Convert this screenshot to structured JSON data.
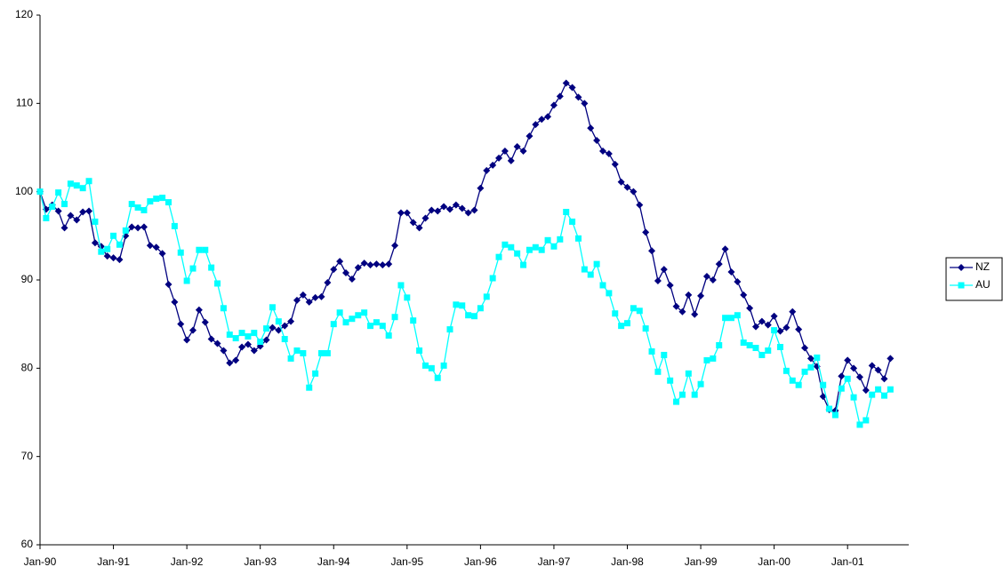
{
  "chart_data": {
    "type": "line",
    "categories": [
      "Jan-90",
      null,
      null,
      null,
      null,
      null,
      null,
      null,
      null,
      null,
      null,
      null,
      "Jan-91",
      null,
      null,
      null,
      null,
      null,
      null,
      null,
      null,
      null,
      null,
      null,
      "Jan-92",
      null,
      null,
      null,
      null,
      null,
      null,
      null,
      null,
      null,
      null,
      null,
      "Jan-93",
      null,
      null,
      null,
      null,
      null,
      null,
      null,
      null,
      null,
      null,
      null,
      "Jan-94",
      null,
      null,
      null,
      null,
      null,
      null,
      null,
      null,
      null,
      null,
      null,
      "Jan-95",
      null,
      null,
      null,
      null,
      null,
      null,
      null,
      null,
      null,
      null,
      null,
      "Jan-96",
      null,
      null,
      null,
      null,
      null,
      null,
      null,
      null,
      null,
      null,
      null,
      "Jan-97",
      null,
      null,
      null,
      null,
      null,
      null,
      null,
      null,
      null,
      null,
      null,
      "Jan-98",
      null,
      null,
      null,
      null,
      null,
      null,
      null,
      null,
      null,
      null,
      null,
      "Jan-99",
      null,
      null,
      null,
      null,
      null,
      null,
      null,
      null,
      null,
      null,
      null,
      "Jan-00",
      null,
      null,
      null,
      null,
      null,
      null,
      null,
      null,
      null,
      null,
      null,
      "Jan-01",
      null,
      null,
      null,
      null,
      null,
      null,
      null
    ],
    "series": [
      {
        "name": "NZ",
        "color": "#000080",
        "marker": "diamond",
        "values": [
          100,
          98,
          98.5,
          97.8,
          95.9,
          97.3,
          96.8,
          97.7,
          97.8,
          94.2,
          93.8,
          92.7,
          92.5,
          92.3,
          95,
          96,
          95.9,
          96,
          93.9,
          93.7,
          93,
          89.5,
          87.5,
          85,
          83.2,
          84.3,
          86.6,
          85.2,
          83.3,
          82.8,
          82,
          80.6,
          80.9,
          82.4,
          82.7,
          82,
          82.5,
          83.2,
          84.6,
          84.3,
          84.8,
          85.3,
          87.7,
          88.3,
          87.5,
          88,
          88.1,
          89.7,
          91.2,
          92.1,
          90.8,
          90.1,
          91.4,
          91.9,
          91.7,
          91.8,
          91.7,
          91.8,
          93.9,
          97.6,
          97.6,
          96.5,
          95.9,
          97,
          97.9,
          97.8,
          98.3,
          98,
          98.5,
          98.1,
          97.6,
          97.9,
          100.4,
          102.4,
          103,
          103.8,
          104.6,
          103.5,
          105.1,
          104.6,
          106.3,
          107.6,
          108.2,
          108.5,
          109.8,
          110.8,
          112.3,
          111.8,
          110.7,
          110,
          107.2,
          105.8,
          104.6,
          104.3,
          103.1,
          101.1,
          100.5,
          100,
          98.5,
          95.4,
          93.3,
          89.9,
          91.2,
          89.4,
          87,
          86.4,
          88.3,
          86.1,
          88.2,
          90.4,
          90,
          91.8,
          93.5,
          90.9,
          89.8,
          88.3,
          86.8,
          84.7,
          85.3,
          84.9,
          85.9,
          84.2,
          84.6,
          86.4,
          84.4,
          82.3,
          81.1,
          80.2,
          76.8,
          75.3,
          75.2,
          79.1,
          80.9,
          80,
          79,
          77.5,
          80.3,
          79.8,
          78.8,
          81.1
        ]
      },
      {
        "name": "AU",
        "color": "#00ffff",
        "marker": "square",
        "values": [
          100,
          97,
          98.3,
          99.9,
          98.6,
          100.9,
          100.7,
          100.4,
          101.2,
          96.6,
          93.2,
          93.5,
          95,
          94,
          95.6,
          98.6,
          98.2,
          97.9,
          98.9,
          99.2,
          99.3,
          98.8,
          96.1,
          93.1,
          89.9,
          91.3,
          93.4,
          93.4,
          91.4,
          89.6,
          86.8,
          83.8,
          83.4,
          84,
          83.6,
          84,
          83,
          84.5,
          86.9,
          85.3,
          83.3,
          81.1,
          82,
          81.7,
          77.8,
          79.4,
          81.7,
          81.7,
          85,
          86.3,
          85.2,
          85.6,
          86,
          86.3,
          84.8,
          85.2,
          84.8,
          83.7,
          85.8,
          89.4,
          88,
          85.4,
          82,
          80.3,
          80,
          78.9,
          80.3,
          84.4,
          87.2,
          87.1,
          86,
          85.9,
          86.8,
          88.1,
          90.2,
          92.6,
          94,
          93.7,
          93,
          91.7,
          93.4,
          93.7,
          93.4,
          94.5,
          93.8,
          94.6,
          97.7,
          96.6,
          94.7,
          91.2,
          90.6,
          91.8,
          89.4,
          88.5,
          86.2,
          84.8,
          85.1,
          86.8,
          86.5,
          84.5,
          81.9,
          79.6,
          81.5,
          78.6,
          76.2,
          77,
          79.4,
          77,
          78.2,
          80.9,
          81.1,
          82.6,
          85.7,
          85.7,
          86,
          82.9,
          82.6,
          82.3,
          81.5,
          82,
          84.3,
          82.4,
          79.7,
          78.6,
          78.1,
          79.6,
          80.1,
          81.2,
          78.1,
          75.4,
          74.7,
          77.7,
          78.8,
          76.7,
          73.6,
          74.1,
          77,
          77.6,
          76.9,
          77.6
        ]
      }
    ],
    "ylim": [
      60,
      120
    ],
    "yticks": [
      60,
      70,
      80,
      90,
      100,
      110,
      120
    ],
    "grid": false,
    "legend": "right"
  }
}
